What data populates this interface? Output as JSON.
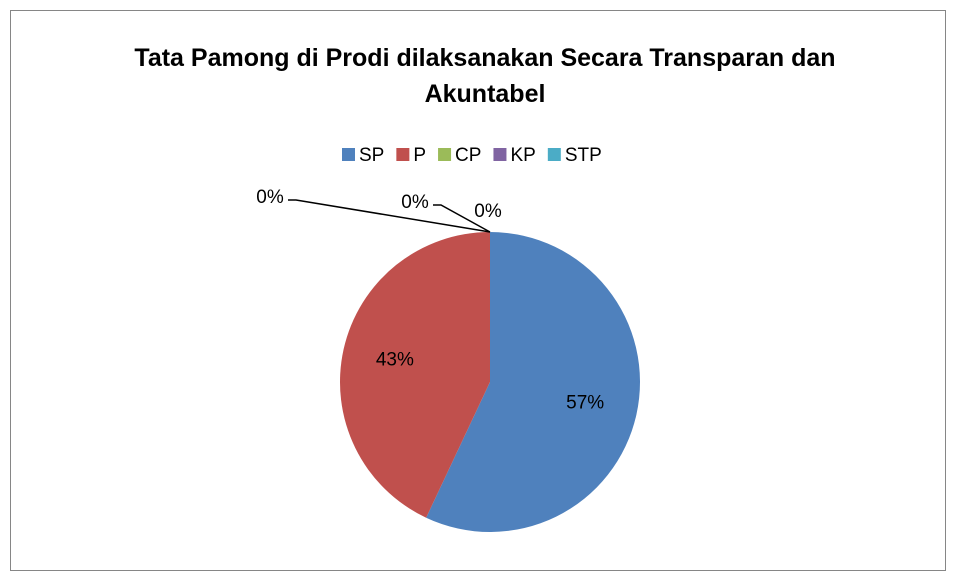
{
  "chart_data": {
    "type": "pie",
    "title": "Tata Pamong di Prodi dilaksanakan Secara Transparan dan Akuntabel",
    "categories": [
      "SP",
      "P",
      "CP",
      "KP",
      "STP"
    ],
    "values": [
      57,
      43,
      0,
      0,
      0
    ],
    "value_labels": [
      "57%",
      "43%",
      "0%",
      "0%",
      "0%"
    ],
    "colors": [
      "#4f81bd",
      "#c0504d",
      "#9bbb59",
      "#8064a2",
      "#4bacc6"
    ],
    "legend": "top"
  }
}
